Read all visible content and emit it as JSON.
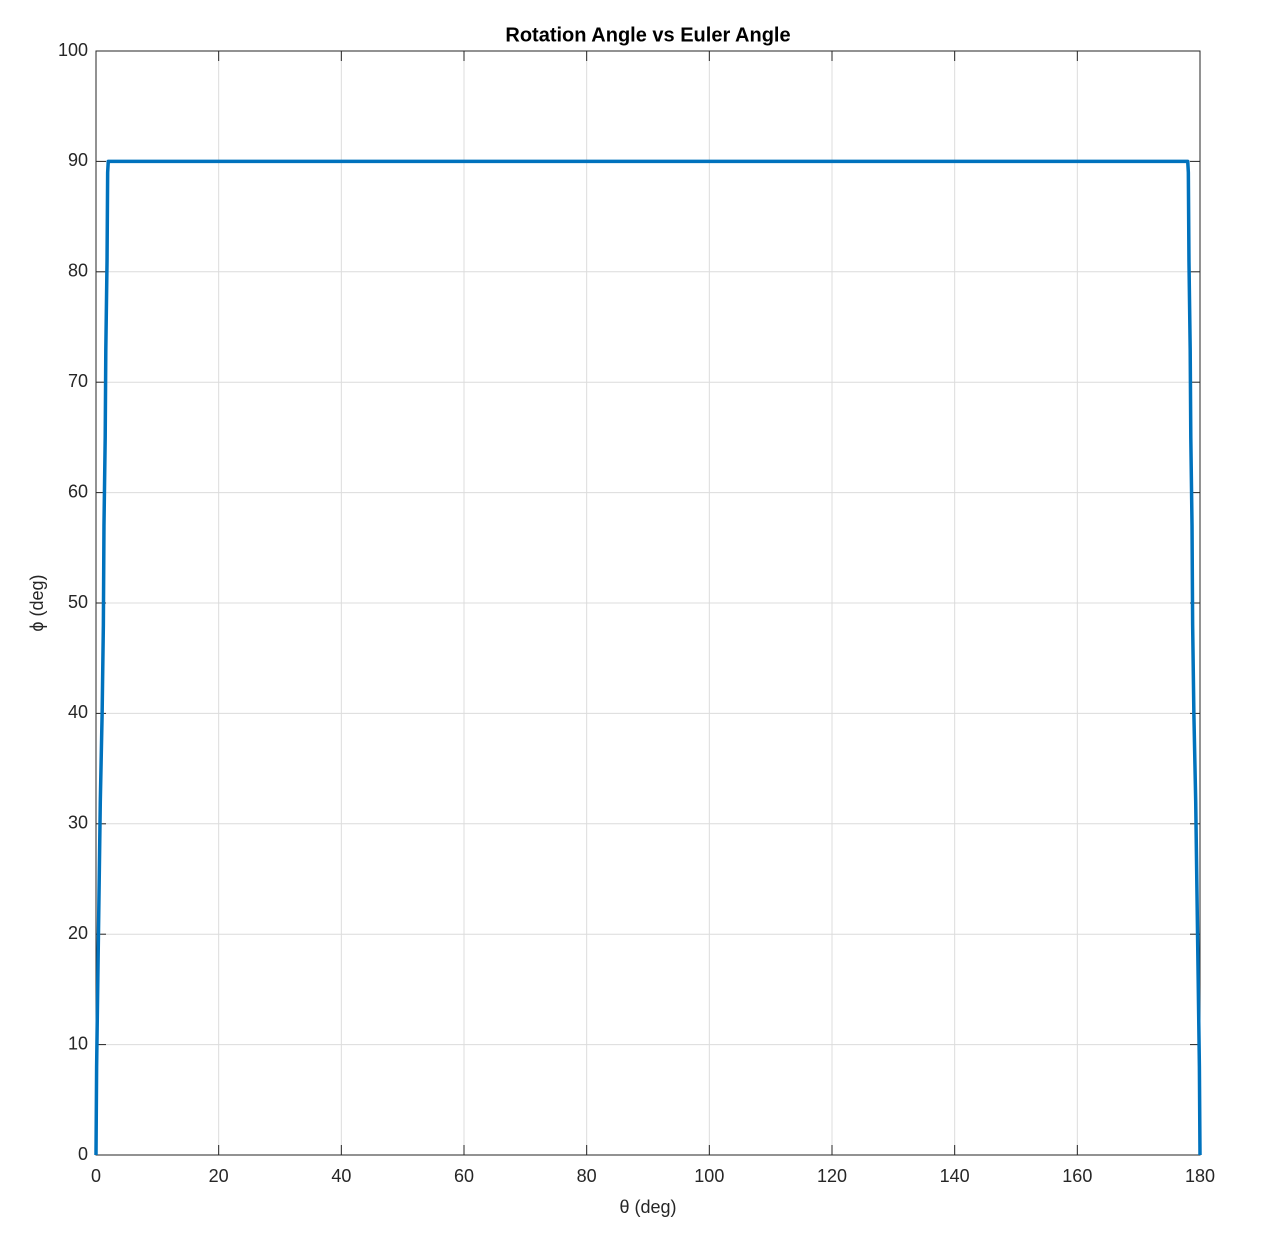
{
  "chart_data": {
    "type": "line",
    "title": "Rotation Angle vs Euler Angle",
    "x_label": "θ (deg)",
    "y_label": "ϕ (deg)",
    "xlim": [
      0,
      180
    ],
    "ylim": [
      0,
      100
    ],
    "xticks": [
      0,
      20,
      40,
      60,
      80,
      100,
      120,
      140,
      160,
      180
    ],
    "yticks": [
      0,
      10,
      20,
      30,
      40,
      50,
      60,
      70,
      80,
      90,
      100
    ],
    "grid": true,
    "series": [
      {
        "name": "phi",
        "color": "#0072bd",
        "x": [
          0,
          0.1,
          0.3,
          0.5,
          0.7,
          1,
          1.2,
          1.3,
          1.5,
          1.6,
          1.8,
          1.9,
          2,
          178,
          178.1,
          178.2,
          178.4,
          178.5,
          178.7,
          178.8,
          179,
          179.3,
          179.5,
          179.7,
          179.9,
          180
        ],
        "values": [
          0,
          8,
          16,
          24,
          32,
          40,
          48,
          57,
          65,
          73,
          81,
          89,
          90,
          90,
          89,
          81,
          73,
          65,
          57,
          48,
          40,
          32,
          24,
          16,
          8,
          0
        ]
      }
    ]
  }
}
